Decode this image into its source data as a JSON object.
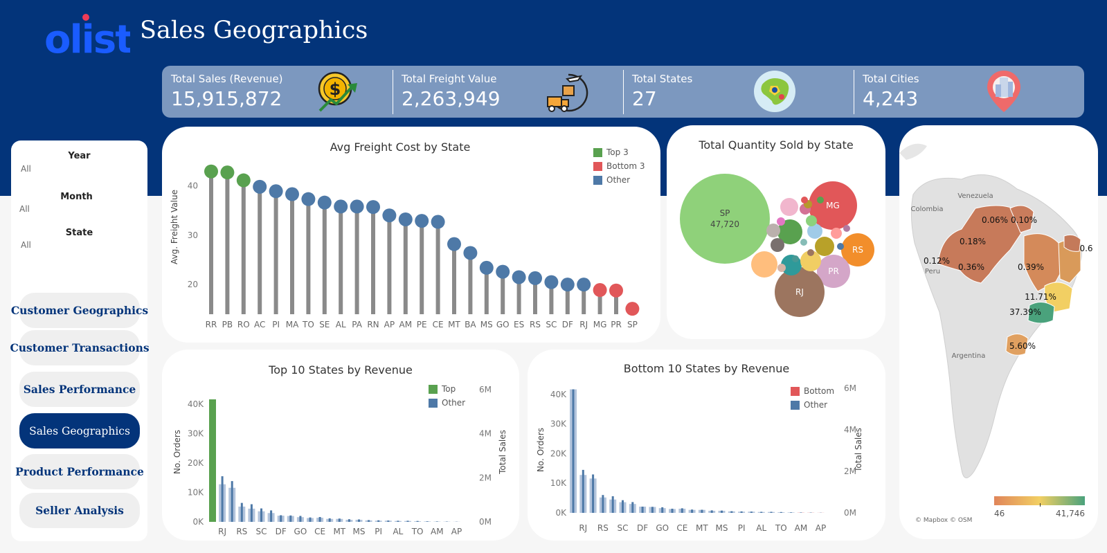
{
  "header": {
    "logo_text": "olist",
    "title": "Sales Geographics"
  },
  "kpis": [
    {
      "label": "Total Sales (Revenue)",
      "value": "15,915,872",
      "icon": "dollar-coin-growth-icon"
    },
    {
      "label": "Total Freight Value",
      "value": "2,263,949",
      "icon": "delivery-truck-plane-icon"
    },
    {
      "label": "Total States",
      "value": "27",
      "icon": "brazil-globe-icon"
    },
    {
      "label": "Total Cities",
      "value": "4,243",
      "icon": "city-location-pin-icon"
    }
  ],
  "filters": [
    {
      "label": "Year",
      "value": "All"
    },
    {
      "label": "Month",
      "value": "All"
    },
    {
      "label": "State",
      "value": "All"
    }
  ],
  "nav": [
    {
      "label": "Customer Geographics",
      "active": false
    },
    {
      "label": "Customer Transactions",
      "active": false
    },
    {
      "label": "Sales Performance",
      "active": false
    },
    {
      "label": "Sales  Geographics",
      "active": true
    },
    {
      "label": "Product Performance",
      "active": false
    },
    {
      "label": "Seller Analysis",
      "active": false
    }
  ],
  "colors": {
    "brand": "#03347a",
    "top": "#59a14f",
    "bottom": "#e15759",
    "other": "#4e79a7",
    "stem": "#8a8a8a",
    "map_low": "#e0855a",
    "map_mid": "#f2cf63",
    "map_high": "#4aa27c"
  },
  "freight_chart": {
    "title": "Avg Freight Cost by State",
    "ylabel": "Avg. Freight Value",
    "legend": [
      "Top 3",
      "Bottom 3",
      "Other"
    ]
  },
  "bubble_chart": {
    "title": "Total Quantity Sold by State",
    "big_label": "SP",
    "big_value": "47,720"
  },
  "top10_chart": {
    "title": "Top 10 States by Revenue",
    "ylabel_left": "No. Orders",
    "ylabel_right": "Total Sales",
    "legend": [
      "Top",
      "Other"
    ]
  },
  "bottom10_chart": {
    "title": "Bottom 10 States by Revenue",
    "ylabel_left": "No. Orders",
    "ylabel_right": "Total Sales",
    "legend": [
      "Bottom",
      "Other"
    ]
  },
  "map": {
    "countries": [
      "Venezuela",
      "Colombia",
      "Peru",
      "Argentina"
    ],
    "labels": [
      "0.06%",
      "0.10%",
      "0.18%",
      "0.12%",
      "0.36%",
      "0.39%",
      "0.6",
      "11.71%",
      "37.39%",
      "5.60%"
    ],
    "scale_min": "46",
    "scale_max": "41,746",
    "attribution": "© Mapbox © OSM"
  },
  "chart_data": [
    {
      "type": "lollipop",
      "title": "Avg Freight Cost by State",
      "ylabel": "Avg. Freight Value",
      "ylim": [
        14,
        43
      ],
      "yticks": [
        20,
        30,
        40
      ],
      "categories": [
        "RR",
        "PB",
        "RO",
        "AC",
        "PI",
        "MA",
        "TO",
        "SE",
        "AL",
        "PA",
        "RN",
        "AP",
        "AM",
        "PE",
        "CE",
        "MT",
        "BA",
        "MS",
        "GO",
        "ES",
        "RS",
        "SC",
        "DF",
        "RJ",
        "MG",
        "PR",
        "SP"
      ],
      "values": [
        42.9,
        42.7,
        41.1,
        39.8,
        38.9,
        38.3,
        37.3,
        36.6,
        35.8,
        35.8,
        35.7,
        34.0,
        33.2,
        32.9,
        32.7,
        28.2,
        26.4,
        23.4,
        22.6,
        21.5,
        21.3,
        20.5,
        20.0,
        20.0,
        18.9,
        18.8,
        15.1
      ],
      "group": [
        "top",
        "top",
        "top",
        "other",
        "other",
        "other",
        "other",
        "other",
        "other",
        "other",
        "other",
        "other",
        "other",
        "other",
        "other",
        "other",
        "other",
        "other",
        "other",
        "other",
        "other",
        "other",
        "other",
        "other",
        "bottom",
        "bottom",
        "bottom"
      ],
      "legend": [
        "Top 3",
        "Bottom 3",
        "Other"
      ]
    },
    {
      "type": "bubble",
      "title": "Total Quantity Sold by State",
      "labeled": [
        {
          "label": "SP",
          "value": 47720
        },
        {
          "label": "RJ"
        },
        {
          "label": "MG"
        },
        {
          "label": "RS"
        },
        {
          "label": "PR"
        }
      ]
    },
    {
      "type": "bar",
      "title": "Top 10 States by Revenue",
      "ylabel": "No. Orders",
      "y2label": "Total Sales",
      "ylim": [
        0,
        45000
      ],
      "yticks": [
        "0K",
        "10K",
        "20K",
        "30K",
        "40K"
      ],
      "y2ticks": [
        "0M",
        "2M",
        "4M",
        "6M"
      ],
      "tick_categories": [
        "RJ",
        "RS",
        "SC",
        "DF",
        "GO",
        "CE",
        "MT",
        "MS",
        "PI",
        "AL",
        "TO",
        "AM",
        "AP"
      ],
      "orders": [
        41700,
        12800,
        11600,
        5200,
        4500,
        3600,
        3000,
        2100,
        2000,
        1600,
        1300,
        1400,
        1000,
        1000,
        700,
        700,
        500,
        400,
        400,
        300,
        300,
        200,
        150,
        100,
        80,
        50
      ],
      "sales": [
        5950000,
        2070000,
        1850000,
        860000,
        800000,
        610000,
        520000,
        300000,
        290000,
        270000,
        200000,
        220000,
        160000,
        150000,
        120000,
        110000,
        80000,
        70000,
        60000,
        50000,
        50000,
        40000,
        25000,
        20000,
        15000,
        8000
      ],
      "highlight_first": "top",
      "legend": [
        "Top",
        "Other"
      ]
    },
    {
      "type": "bar",
      "title": "Bottom 10 States by Revenue",
      "ylabel": "No. Orders",
      "y2label": "Total Sales",
      "ylim": [
        0,
        43000
      ],
      "yticks": [
        "0K",
        "10K",
        "20K",
        "30K",
        "40K"
      ],
      "y2ticks": [
        "0M",
        "2M",
        "4M",
        "6M"
      ],
      "tick_categories": [
        "RJ",
        "RS",
        "SC",
        "DF",
        "GO",
        "CE",
        "MT",
        "MS",
        "PI",
        "AL",
        "TO",
        "AM",
        "AP"
      ],
      "orders": [
        41700,
        12800,
        11600,
        5200,
        4500,
        3600,
        3000,
        2100,
        2000,
        1600,
        1300,
        1400,
        1000,
        1000,
        700,
        700,
        500,
        400,
        400,
        300,
        300,
        200,
        150,
        100,
        80,
        50
      ],
      "sales": [
        5950000,
        2070000,
        1850000,
        860000,
        800000,
        610000,
        520000,
        300000,
        290000,
        270000,
        200000,
        220000,
        160000,
        150000,
        120000,
        110000,
        80000,
        70000,
        60000,
        50000,
        50000,
        40000,
        25000,
        20000,
        15000,
        8000
      ],
      "highlight_last": "bottom",
      "legend": [
        "Bottom",
        "Other"
      ]
    },
    {
      "type": "map",
      "labels": [
        "0.06%",
        "0.10%",
        "0.18%",
        "0.12%",
        "0.36%",
        "0.39%",
        "0.6",
        "11.71%",
        "37.39%",
        "5.60%"
      ],
      "scale_min": 46,
      "scale_max": 41746
    }
  ]
}
